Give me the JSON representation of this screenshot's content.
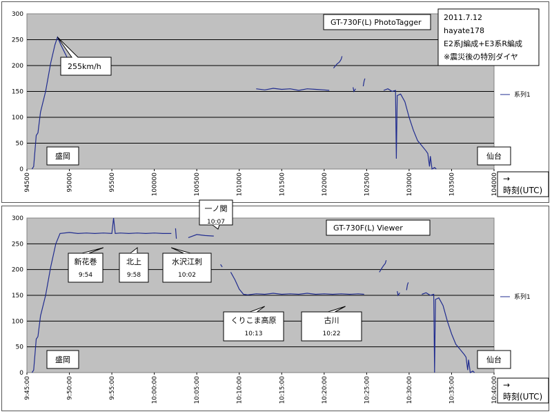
{
  "chart_data": [
    {
      "type": "line",
      "title": "GT-730F(L) PhotoTagger",
      "ylim": [
        0,
        300
      ],
      "yticks": [
        0,
        50,
        100,
        150,
        200,
        250,
        300
      ],
      "xlabel": "→ 時刻(UTC)",
      "x_tick_labels": [
        "94500",
        "95000",
        "95500",
        "100000",
        "100500",
        "101000",
        "101500",
        "102000",
        "102500",
        "103000",
        "103500",
        "104000"
      ],
      "xlim_min": [
        0,
        55
      ],
      "legend": "— 系列1",
      "grid": true,
      "info_lines": [
        "2011.7.12",
        "hayate178",
        "E2系J編成+E3系R編成",
        "※震災後の特別ダイヤ"
      ],
      "annotations": [
        {
          "text": "255km/h",
          "x": 3.6,
          "y": 255
        },
        {
          "text": "盛岡",
          "x": 1,
          "y": 18
        },
        {
          "text": "仙台",
          "x": 53,
          "y": 18
        }
      ],
      "series": [
        {
          "name": "系列1",
          "segments": [
            [
              [
                0.6,
                0
              ],
              [
                0.8,
                5
              ],
              [
                1.1,
                65
              ],
              [
                1.3,
                70
              ],
              [
                1.6,
                110
              ],
              [
                2.2,
                150
              ],
              [
                2.8,
                205
              ],
              [
                3.3,
                240
              ],
              [
                3.6,
                255
              ],
              [
                4.0,
                240
              ],
              [
                4.6,
                220
              ],
              [
                4.9,
                210
              ]
            ],
            [
              [
                27.0,
                155
              ],
              [
                28.0,
                153
              ],
              [
                29.0,
                156
              ],
              [
                30.0,
                154
              ],
              [
                31.0,
                155
              ],
              [
                32.0,
                152
              ],
              [
                33.0,
                155
              ],
              [
                34.0,
                154
              ],
              [
                35.0,
                153
              ],
              [
                35.6,
                152
              ]
            ],
            [
              [
                36.1,
                195
              ],
              [
                36.5,
                203
              ],
              [
                36.8,
                207
              ],
              [
                37.0,
                212
              ],
              [
                37.1,
                218
              ]
            ],
            [
              [
                38.4,
                158
              ],
              [
                38.5,
                150
              ],
              [
                38.7,
                155
              ]
            ],
            [
              [
                39.6,
                160
              ],
              [
                39.7,
                170
              ],
              [
                39.8,
                175
              ]
            ],
            [
              [
                42.0,
                152
              ],
              [
                42.5,
                155
              ],
              [
                43.0,
                150
              ],
              [
                43.4,
                152
              ],
              [
                43.5,
                20
              ],
              [
                43.6,
                142
              ],
              [
                44.0,
                145
              ],
              [
                44.5,
                130
              ],
              [
                45.0,
                100
              ],
              [
                45.5,
                75
              ],
              [
                46.0,
                55
              ],
              [
                46.5,
                45
              ],
              [
                47.0,
                35
              ],
              [
                47.2,
                30
              ],
              [
                47.4,
                5
              ],
              [
                47.5,
                25
              ],
              [
                47.7,
                0
              ],
              [
                48.0,
                3
              ],
              [
                48.2,
                0
              ]
            ]
          ]
        }
      ]
    },
    {
      "type": "line",
      "title": "GT-730F(L) Viewer",
      "ylim": [
        0,
        300
      ],
      "yticks": [
        0,
        50,
        100,
        150,
        200,
        250,
        300
      ],
      "xlabel": "→ 時刻(UTC)",
      "x_tick_labels": [
        "9:45:00",
        "9:50:00",
        "9:55:00",
        "10:00:00",
        "10:05:00",
        "10:10:00",
        "10:15:00",
        "10:20:00",
        "10:25:00",
        "10:30:00",
        "10:35:00",
        "10:40:00"
      ],
      "xlim_min": [
        0,
        55
      ],
      "legend": "— 系列1",
      "grid": true,
      "annotations": [
        {
          "text": "新花巻",
          "time": "9:54",
          "x": 9.0,
          "y": 270
        },
        {
          "text": "北上",
          "time": "9:58",
          "x": 13.0,
          "y": 270
        },
        {
          "text": "水沢江刺",
          "time": "10:02",
          "x": 17.0,
          "y": 270
        },
        {
          "text": "一ノ関",
          "time": "10:07",
          "x": 22.5,
          "y": 270
        },
        {
          "text": "くりこま高原",
          "time": "10:13",
          "x": 28.0,
          "y": 152
        },
        {
          "text": "古川",
          "time": "10:22",
          "x": 37.5,
          "y": 152
        },
        {
          "text": "盛岡",
          "x": 1,
          "y": 18
        },
        {
          "text": "仙台",
          "x": 53,
          "y": 18
        }
      ],
      "series": [
        {
          "name": "系列1",
          "segments": [
            [
              [
                0.6,
                0
              ],
              [
                0.8,
                5
              ],
              [
                1.1,
                65
              ],
              [
                1.3,
                70
              ],
              [
                1.6,
                110
              ],
              [
                2.2,
                150
              ],
              [
                2.8,
                205
              ],
              [
                3.4,
                250
              ],
              [
                3.9,
                270
              ],
              [
                5.0,
                272
              ],
              [
                6.0,
                270
              ],
              [
                7.0,
                271
              ],
              [
                8.0,
                270
              ],
              [
                9.0,
                271
              ],
              [
                10.0,
                270
              ],
              [
                10.2,
                300
              ],
              [
                10.4,
                270
              ],
              [
                11.0,
                271
              ],
              [
                12.0,
                270
              ],
              [
                13.0,
                271
              ],
              [
                14.0,
                270
              ],
              [
                15.0,
                271
              ],
              [
                16.0,
                270
              ],
              [
                17.0,
                270
              ]
            ],
            [
              [
                17.5,
                280
              ],
              [
                17.6,
                260
              ]
            ],
            [
              [
                19.0,
                262
              ],
              [
                20.0,
                268
              ],
              [
                21.0,
                266
              ],
              [
                22.0,
                265
              ]
            ],
            [
              [
                22.8,
                210
              ],
              [
                23.0,
                205
              ]
            ],
            [
              [
                24.0,
                195
              ],
              [
                24.5,
                180
              ],
              [
                25.0,
                162
              ],
              [
                25.5,
                152
              ],
              [
                26.0,
                151
              ]
            ],
            [
              [
                26.0,
                151
              ],
              [
                27.0,
                153
              ],
              [
                28.0,
                152
              ],
              [
                29.0,
                154
              ],
              [
                30.0,
                152
              ],
              [
                31.0,
                153
              ],
              [
                32.0,
                152
              ],
              [
                33.0,
                154
              ],
              [
                34.0,
                152
              ],
              [
                35.0,
                153
              ],
              [
                36.0,
                152
              ],
              [
                37.0,
                153
              ],
              [
                38.0,
                152
              ],
              [
                39.0,
                153
              ],
              [
                39.7,
                152
              ]
            ],
            [
              [
                41.5,
                195
              ],
              [
                41.8,
                203
              ],
              [
                42.0,
                208
              ],
              [
                42.2,
                212
              ],
              [
                42.3,
                218
              ]
            ],
            [
              [
                43.6,
                158
              ],
              [
                43.7,
                150
              ],
              [
                43.9,
                155
              ]
            ],
            [
              [
                44.7,
                160
              ],
              [
                44.8,
                170
              ],
              [
                44.9,
                175
              ]
            ],
            [
              [
                46.5,
                152
              ],
              [
                47.0,
                155
              ],
              [
                47.5,
                150
              ],
              [
                47.9,
                152
              ],
              [
                48.0,
                0
              ],
              [
                48.1,
                142
              ],
              [
                48.5,
                145
              ],
              [
                49.0,
                130
              ],
              [
                49.5,
                100
              ],
              [
                50.0,
                75
              ],
              [
                50.5,
                55
              ],
              [
                51.0,
                45
              ],
              [
                51.5,
                35
              ],
              [
                51.7,
                30
              ],
              [
                51.9,
                5
              ],
              [
                52.0,
                25
              ],
              [
                52.2,
                0
              ],
              [
                52.5,
                3
              ],
              [
                52.7,
                0
              ]
            ]
          ]
        }
      ]
    }
  ]
}
